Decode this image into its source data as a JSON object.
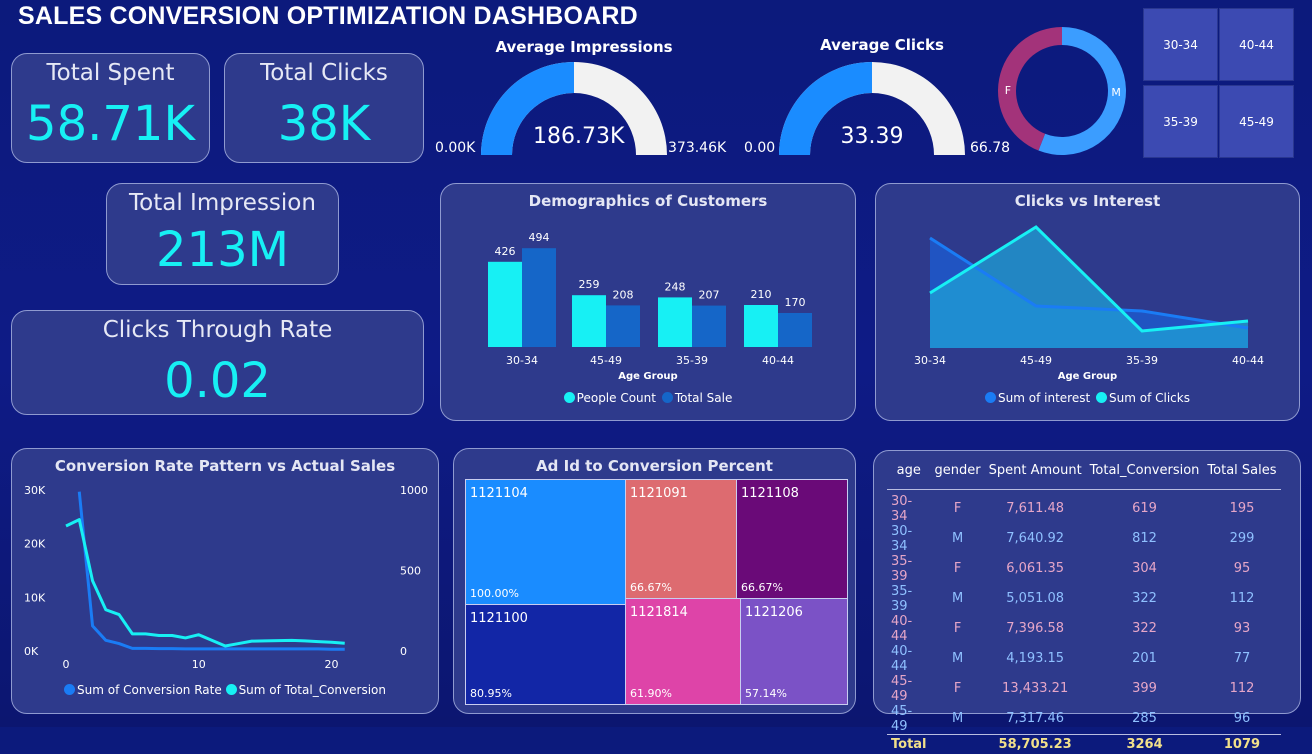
{
  "title": "SALES CONVERSION OPTIMIZATION DASHBOARD",
  "kpis": {
    "total_spent": {
      "label": "Total Spent",
      "value": "58.71K"
    },
    "total_clicks": {
      "label": "Total Clicks",
      "value": "38K"
    },
    "total_impression": {
      "label": "Total Impression",
      "value": "213M"
    },
    "ctr": {
      "label": "Clicks Through Rate",
      "value": "0.02"
    }
  },
  "gauges": [
    {
      "title": "Average Impressions",
      "value": "186.73K",
      "min": "0.00K",
      "max": "373.46K",
      "fraction": 0.5
    },
    {
      "title": "Average Clicks",
      "value": "33.39",
      "min": "0.00",
      "max": "66.78",
      "fraction": 0.5
    }
  ],
  "gender_donut": {
    "slices": [
      {
        "label": "M",
        "share": 0.56,
        "color": "#3b9dff"
      },
      {
        "label": "F",
        "share": 0.44,
        "color": "#a3337a"
      }
    ]
  },
  "age_slicer": [
    "30-34",
    "40-44",
    "35-39",
    "45-49"
  ],
  "demographics": {
    "title": "Demographics of Customers",
    "xlabel": "Age Group",
    "categories": [
      "30-34",
      "45-49",
      "35-39",
      "40-44"
    ],
    "series": [
      {
        "name": "People Count",
        "values": [
          426,
          259,
          248,
          210
        ],
        "color": "#17f0f4"
      },
      {
        "name": "Total Sale",
        "values": [
          494,
          208,
          207,
          170
        ],
        "color": "#1566c8"
      }
    ]
  },
  "clicks_interest": {
    "title": "Clicks vs Interest",
    "xlabel": "Age Group",
    "categories": [
      "30-34",
      "45-49",
      "35-39",
      "40-44"
    ],
    "series": [
      {
        "name": "Sum of interest",
        "values": [
          110,
          42,
          37,
          20
        ],
        "color": "#1a7cf5"
      },
      {
        "name": "Sum of Clicks",
        "values": [
          55,
          121,
          17,
          27
        ],
        "color": "#17f0f4"
      }
    ]
  },
  "chart_data": {
    "type": "line",
    "title": "Conversion Rate Pattern vs Actual Sales",
    "x_ticks": [
      "0",
      "10",
      "20"
    ],
    "y_left_ticks": [
      "30K",
      "20K",
      "10K",
      "0K"
    ],
    "y_right_ticks": [
      "1000",
      "500",
      "0"
    ],
    "ylim_left": [
      0,
      30000
    ],
    "ylim_right": [
      0,
      1000
    ],
    "xlim": [
      0,
      22
    ],
    "series": [
      {
        "name": "Sum of Conversion Rate",
        "axis": "left",
        "color": "#1a7cf5",
        "x": [
          1,
          2,
          3,
          4,
          5,
          6,
          7,
          8,
          9,
          10,
          11,
          12,
          13,
          14,
          15,
          16,
          17,
          18,
          19,
          20,
          21
        ],
        "values": [
          29500,
          4500,
          1800,
          1200,
          300,
          300,
          250,
          250,
          200,
          200,
          200,
          200,
          200,
          200,
          200,
          200,
          200,
          200,
          200,
          150,
          150
        ]
      },
      {
        "name": "Sum of Total_Conversion",
        "axis": "right",
        "color": "#17f0f4",
        "x": [
          0,
          1,
          2,
          3,
          4,
          5,
          6,
          7,
          8,
          9,
          10,
          11,
          12,
          13,
          14,
          15,
          16,
          17,
          18,
          19,
          20,
          21
        ],
        "values": [
          770,
          810,
          430,
          250,
          220,
          100,
          100,
          90,
          90,
          75,
          95,
          60,
          25,
          40,
          55,
          57,
          58,
          60,
          57,
          52,
          48,
          42
        ]
      }
    ]
  },
  "treemap": {
    "title": "Ad Id to Conversion Percent",
    "cells": [
      {
        "id": "1121104",
        "pct": "100.00%",
        "color": "#1a8cff"
      },
      {
        "id": "1121100",
        "pct": "80.95%",
        "color": "#1226a6"
      },
      {
        "id": "1121091",
        "pct": "66.67%",
        "color": "#dd6b70"
      },
      {
        "id": "1121108",
        "pct": "66.67%",
        "color": "#6a0a78"
      },
      {
        "id": "1121814",
        "pct": "61.90%",
        "color": "#de44a8"
      },
      {
        "id": "1121206",
        "pct": "57.14%",
        "color": "#7b52c6"
      }
    ]
  },
  "table": {
    "headers": [
      "age",
      "gender",
      "Spent Amount",
      "Total_Conversion",
      "Total Sales"
    ],
    "rows": [
      [
        "30-34",
        "F",
        "7,611.48",
        "619",
        "195"
      ],
      [
        "30-34",
        "M",
        "7,640.92",
        "812",
        "299"
      ],
      [
        "35-39",
        "F",
        "6,061.35",
        "304",
        "95"
      ],
      [
        "35-39",
        "M",
        "5,051.08",
        "322",
        "112"
      ],
      [
        "40-44",
        "F",
        "7,396.58",
        "322",
        "93"
      ],
      [
        "40-44",
        "M",
        "4,193.15",
        "201",
        "77"
      ],
      [
        "45-49",
        "F",
        "13,433.21",
        "399",
        "112"
      ],
      [
        "45-49",
        "M",
        "7,317.46",
        "285",
        "96"
      ]
    ],
    "total": [
      "Total",
      "",
      "58,705.23",
      "3264",
      "1079"
    ]
  }
}
